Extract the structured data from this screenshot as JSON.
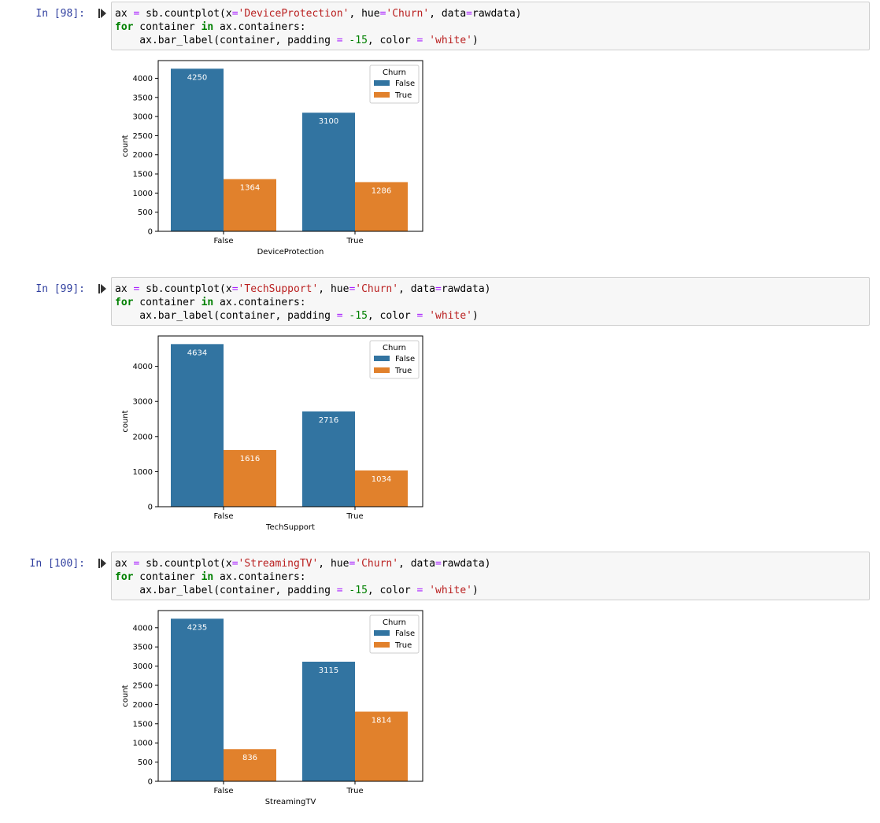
{
  "cells": [
    {
      "prompt": "In [98]:",
      "code": {
        "line1": [
          "ax ",
          "=",
          " sb.countplot(x",
          "=",
          "'DeviceProtection'",
          ", hue",
          "=",
          "'Churn'",
          ", data",
          "=",
          "rawdata)"
        ],
        "line2": [
          "for",
          " container ",
          "in",
          " ax.containers:"
        ],
        "line3": [
          "    ax.bar_label(container, padding ",
          "=",
          " ",
          "-15",
          ", color ",
          "=",
          " ",
          "'white'",
          ")"
        ]
      },
      "chart_data": {
        "type": "bar",
        "categories": [
          "False",
          "True"
        ],
        "series": [
          {
            "name": "False",
            "values": [
              4250,
              3100
            ],
            "color": "#3274a1"
          },
          {
            "name": "True",
            "values": [
              1364,
              1286
            ],
            "color": "#e1812c"
          }
        ],
        "xlabel": "DeviceProtection",
        "ylabel": "count",
        "ylim": [
          0,
          4462
        ],
        "yticks": [
          0,
          500,
          1000,
          1500,
          2000,
          2500,
          3000,
          3500,
          4000
        ],
        "legend_title": "Churn",
        "legend_position": "top-right",
        "grid": false
      }
    },
    {
      "prompt": "In [99]:",
      "code": {
        "line1": [
          "ax ",
          "=",
          " sb.countplot(x",
          "=",
          "'TechSupport'",
          ", hue",
          "=",
          "'Churn'",
          ", data",
          "=",
          "rawdata)"
        ],
        "line2": [
          "for",
          " container ",
          "in",
          " ax.containers:"
        ],
        "line3": [
          "    ax.bar_label(container, padding ",
          "=",
          " ",
          "-15",
          ", color ",
          "=",
          " ",
          "'white'",
          ")"
        ]
      },
      "chart_data": {
        "type": "bar",
        "categories": [
          "False",
          "True"
        ],
        "series": [
          {
            "name": "False",
            "values": [
              4634,
              2716
            ],
            "color": "#3274a1"
          },
          {
            "name": "True",
            "values": [
              1616,
              1034
            ],
            "color": "#e1812c"
          }
        ],
        "xlabel": "TechSupport",
        "ylabel": "count",
        "ylim": [
          0,
          4866
        ],
        "yticks": [
          0,
          1000,
          2000,
          3000,
          4000
        ],
        "legend_title": "Churn",
        "legend_position": "top-right",
        "grid": false
      }
    },
    {
      "prompt": "In [100]:",
      "code": {
        "line1": [
          "ax ",
          "=",
          " sb.countplot(x",
          "=",
          "'StreamingTV'",
          ", hue",
          "=",
          "'Churn'",
          ", data",
          "=",
          "rawdata)"
        ],
        "line2": [
          "for",
          " container ",
          "in",
          " ax.containers:"
        ],
        "line3": [
          "    ax.bar_label(container, padding ",
          "=",
          " ",
          "-15",
          ", color ",
          "=",
          " ",
          "'white'",
          ")"
        ]
      },
      "chart_data": {
        "type": "bar",
        "categories": [
          "False",
          "True"
        ],
        "series": [
          {
            "name": "False",
            "values": [
              4235,
              3115
            ],
            "color": "#3274a1"
          },
          {
            "name": "True",
            "values": [
              836,
              1814
            ],
            "color": "#e1812c"
          }
        ],
        "xlabel": "StreamingTV",
        "ylabel": "count",
        "ylim": [
          0,
          4447
        ],
        "yticks": [
          0,
          500,
          1000,
          1500,
          2000,
          2500,
          3000,
          3500,
          4000
        ],
        "legend_title": "Churn",
        "legend_position": "top-right",
        "grid": false
      }
    }
  ]
}
